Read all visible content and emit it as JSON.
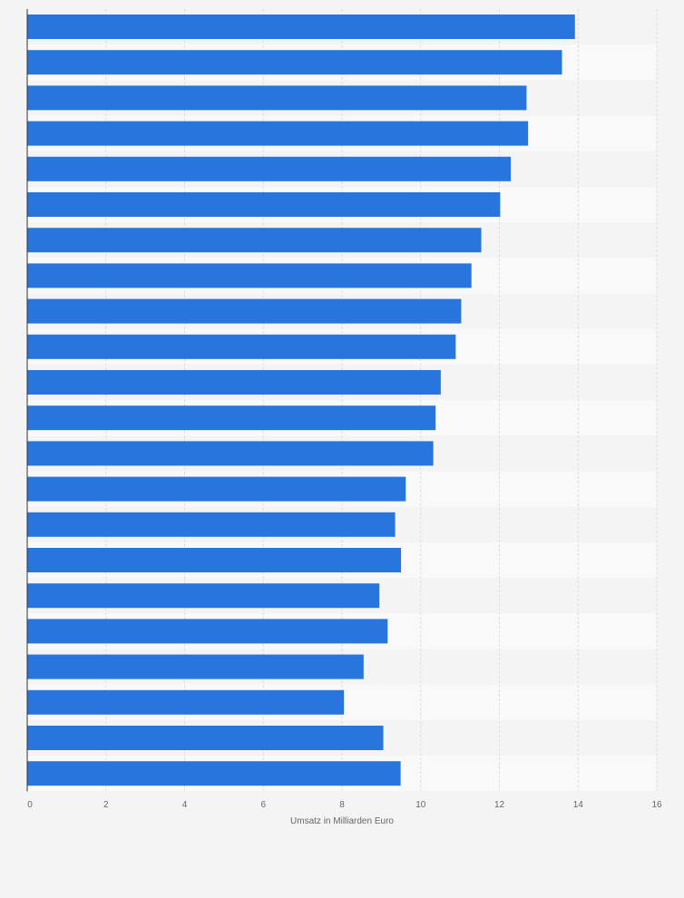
{
  "colors": {
    "bar": "#2876dd",
    "background": "#f4f4f4",
    "band_light": "#f9f9f9",
    "band_dark": "#f4f4f4",
    "gridline": "#dddddd",
    "axis": "#333333",
    "text": "#666666"
  },
  "chart_data": {
    "type": "bar",
    "orientation": "horizontal",
    "title": "",
    "xlabel": "Umsatz in Milliarden Euro",
    "ylabel": "",
    "xlim": [
      0,
      16
    ],
    "xticks": [
      0,
      2,
      4,
      6,
      8,
      10,
      12,
      14,
      16
    ],
    "grid": true,
    "category_labels_visible": false,
    "values": [
      13.92,
      13.59,
      12.69,
      12.73,
      12.29,
      12.02,
      11.54,
      11.29,
      11.03,
      10.89,
      10.51,
      10.38,
      10.32,
      9.62,
      9.35,
      9.5,
      8.95,
      9.16,
      8.55,
      8.05,
      9.05,
      9.49
    ]
  }
}
